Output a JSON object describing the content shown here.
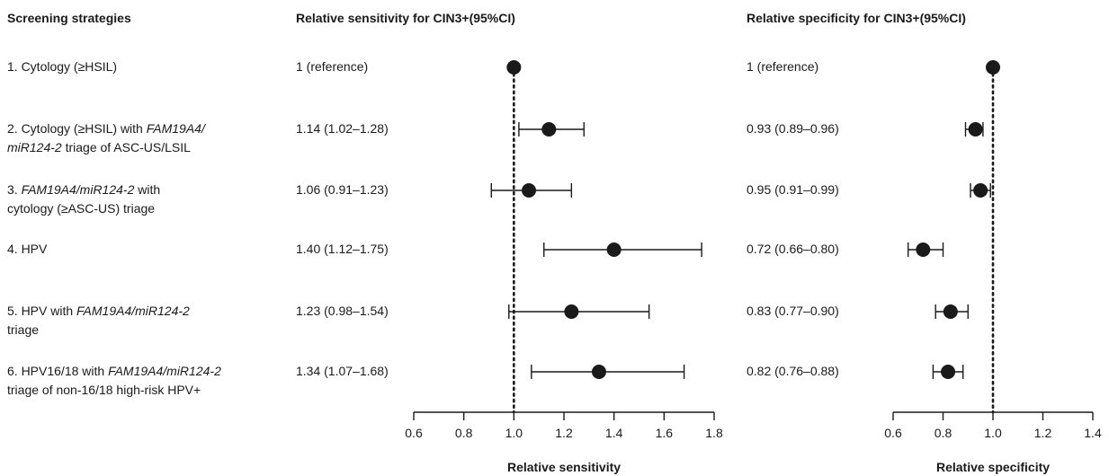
{
  "headers": {
    "strategies": "Screening strategies",
    "sensitivity": "Relative sensitivity for CIN3+(95%CI)",
    "specificity": "Relative specificity for CIN3+(95%CI)"
  },
  "rows": [
    {
      "line1": [
        {
          "t": "1. Cytology (≥HSIL)",
          "i": false
        }
      ],
      "line2": [],
      "sens_text": "1 (reference)",
      "spec_text": "1 (reference)"
    },
    {
      "line1": [
        {
          "t": "2. Cytology (≥HSIL) with ",
          "i": false
        },
        {
          "t": "FAM19A4/",
          "i": true
        }
      ],
      "line2": [
        {
          "t": "miR124-2",
          "i": true
        },
        {
          "t": " triage of ASC-US/LSIL",
          "i": false
        }
      ],
      "sens_text": "1.14 (1.02–1.28)",
      "spec_text": "0.93 (0.89–0.96)"
    },
    {
      "line1": [
        {
          "t": "3. ",
          "i": false
        },
        {
          "t": "FAM19A4/miR124-2",
          "i": true
        },
        {
          "t": " with",
          "i": false
        }
      ],
      "line2": [
        {
          "t": "cytology (≥ASC-US) triage",
          "i": false
        }
      ],
      "sens_text": "1.06 (0.91–1.23)",
      "spec_text": "0.95 (0.91–0.99)"
    },
    {
      "line1": [
        {
          "t": "4. HPV",
          "i": false
        }
      ],
      "line2": [],
      "sens_text": "1.40 (1.12–1.75)",
      "spec_text": "0.72 (0.66–0.80)"
    },
    {
      "line1": [
        {
          "t": "5. HPV with ",
          "i": false
        },
        {
          "t": "FAM19A4/miR124-2",
          "i": true
        }
      ],
      "line2": [
        {
          "t": "triage",
          "i": false
        }
      ],
      "sens_text": "1.23 (0.98–1.54)",
      "spec_text": "0.83 (0.77–0.90)"
    },
    {
      "line1": [
        {
          "t": "6. HPV16/18 with ",
          "i": false
        },
        {
          "t": "FAM19A4/miR124-2",
          "i": true
        }
      ],
      "line2": [
        {
          "t": "triage of non-16/18 high-risk HPV+",
          "i": false
        }
      ],
      "sens_text": "1.34 (1.07–1.68)",
      "spec_text": "0.82 (0.76–0.88)"
    }
  ],
  "chart_data": [
    {
      "type": "scatter",
      "subtype": "forest",
      "xlabel": "Relative sensitivity",
      "xlim": [
        0.6,
        1.8
      ],
      "ticks": [
        "0.6",
        "0.8",
        "1.0",
        "1.2",
        "1.4",
        "1.6",
        "1.8"
      ],
      "reference_line": 1.0,
      "points": [
        {
          "est": 1.0,
          "lo": null,
          "hi": null
        },
        {
          "est": 1.14,
          "lo": 1.02,
          "hi": 1.28
        },
        {
          "est": 1.06,
          "lo": 0.91,
          "hi": 1.23
        },
        {
          "est": 1.4,
          "lo": 1.12,
          "hi": 1.75
        },
        {
          "est": 1.23,
          "lo": 0.98,
          "hi": 1.54
        },
        {
          "est": 1.34,
          "lo": 1.07,
          "hi": 1.68
        }
      ]
    },
    {
      "type": "scatter",
      "subtype": "forest",
      "xlabel": "Relative specificity",
      "xlim": [
        0.6,
        1.4
      ],
      "ticks": [
        "0.6",
        "0.8",
        "1.0",
        "1.2",
        "1.4"
      ],
      "reference_line": 1.0,
      "points": [
        {
          "est": 1.0,
          "lo": null,
          "hi": null
        },
        {
          "est": 0.93,
          "lo": 0.89,
          "hi": 0.96
        },
        {
          "est": 0.95,
          "lo": 0.91,
          "hi": 0.99
        },
        {
          "est": 0.72,
          "lo": 0.66,
          "hi": 0.8
        },
        {
          "est": 0.83,
          "lo": 0.77,
          "hi": 0.9
        },
        {
          "est": 0.82,
          "lo": 0.76,
          "hi": 0.88
        }
      ]
    }
  ]
}
